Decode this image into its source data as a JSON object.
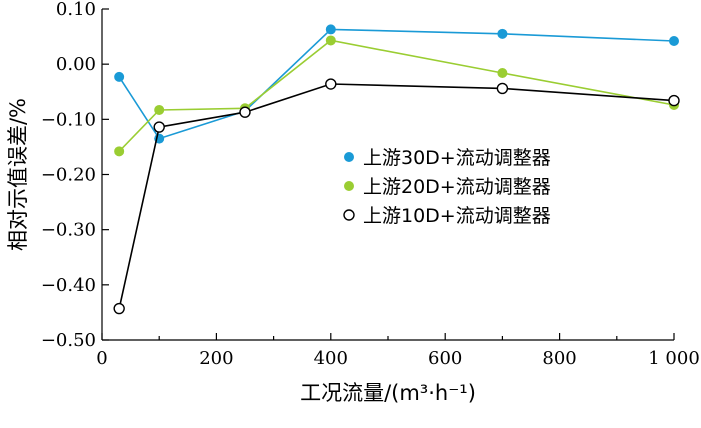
{
  "chart_data": {
    "type": "line",
    "xlabel": "工况流量/(m³·h⁻¹)",
    "ylabel": "相对示值误差/%",
    "xlim": [
      0,
      1000
    ],
    "ylim": [
      -0.5,
      0.1
    ],
    "x_ticks": [
      0,
      200,
      400,
      600,
      800,
      1000
    ],
    "x_tick_labels": [
      "0",
      "200",
      "400",
      "600",
      "800",
      "1 000"
    ],
    "y_ticks": [
      0.1,
      0.0,
      -0.1,
      -0.2,
      -0.3,
      -0.4,
      -0.5
    ],
    "y_tick_labels": [
      "0.10",
      "0.00",
      "−0.10",
      "−0.20",
      "−0.30",
      "−0.40",
      "−0.50"
    ],
    "legend_position": "center-right",
    "series": [
      {
        "name": "上游30D+流动调整器",
        "color": "#1a9ad6",
        "marker": "filled-circle",
        "x": [
          30,
          100,
          250,
          400,
          700,
          1000
        ],
        "y": [
          -0.023,
          -0.135,
          -0.085,
          0.063,
          0.055,
          0.042
        ]
      },
      {
        "name": "上游20D+流动调整器",
        "color": "#9acd32",
        "marker": "filled-circle",
        "x": [
          30,
          100,
          250,
          400,
          700,
          1000
        ],
        "y": [
          -0.158,
          -0.083,
          -0.08,
          0.043,
          -0.016,
          -0.074
        ]
      },
      {
        "name": "上游10D+流动调整器",
        "color": "#000000",
        "marker": "open-circle",
        "x": [
          30,
          100,
          250,
          400,
          700,
          1000
        ],
        "y": [
          -0.443,
          -0.114,
          -0.087,
          -0.036,
          -0.044,
          -0.066
        ]
      }
    ]
  }
}
